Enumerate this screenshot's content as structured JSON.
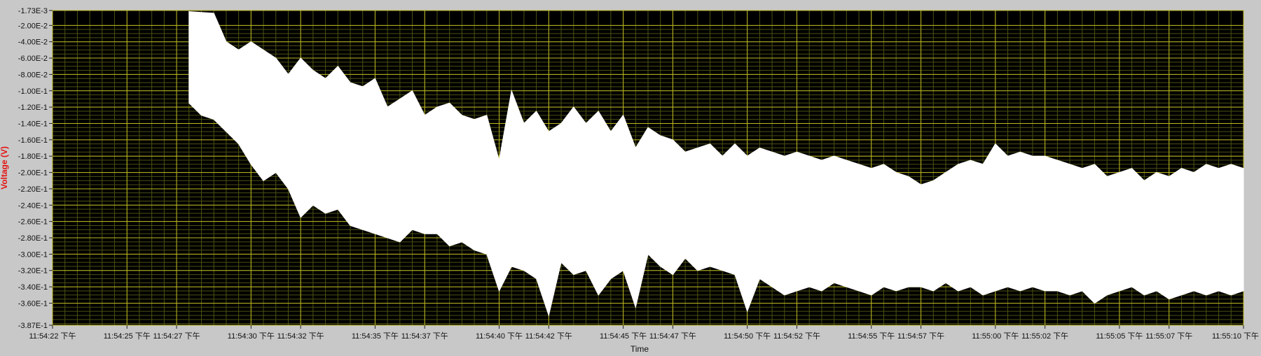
{
  "colors": {
    "frame": "#c8c8c8",
    "plot_bg": "#000000",
    "grid_major": "#bcb820",
    "grid_minor": "#4d5212",
    "signal": "#ffffff",
    "ylabel": "#e31212",
    "tick_text": "#111111"
  },
  "chart_data": {
    "type": "line",
    "title": "",
    "xlabel": "Time",
    "ylabel": "Voltage (V)",
    "grid": true,
    "legend": "none",
    "y_ticks": [
      {
        "value": -0.00173,
        "label": "-1.73E-3"
      },
      {
        "value": -0.02,
        "label": "-2.00E-2"
      },
      {
        "value": -0.04,
        "label": "-4.00E-2"
      },
      {
        "value": -0.06,
        "label": "-6.00E-2"
      },
      {
        "value": -0.08,
        "label": "-8.00E-2"
      },
      {
        "value": -0.1,
        "label": "-1.00E-1"
      },
      {
        "value": -0.12,
        "label": "-1.20E-1"
      },
      {
        "value": -0.14,
        "label": "-1.40E-1"
      },
      {
        "value": -0.16,
        "label": "-1.60E-1"
      },
      {
        "value": -0.18,
        "label": "-1.80E-1"
      },
      {
        "value": -0.2,
        "label": "-2.00E-1"
      },
      {
        "value": -0.22,
        "label": "-2.20E-1"
      },
      {
        "value": -0.24,
        "label": "-2.40E-1"
      },
      {
        "value": -0.26,
        "label": "-2.60E-1"
      },
      {
        "value": -0.28,
        "label": "-2.80E-1"
      },
      {
        "value": -0.3,
        "label": "-3.00E-1"
      },
      {
        "value": -0.32,
        "label": "-3.20E-1"
      },
      {
        "value": -0.34,
        "label": "-3.40E-1"
      },
      {
        "value": -0.36,
        "label": "-3.60E-1"
      },
      {
        "value": -0.387,
        "label": "-3.87E-1"
      }
    ],
    "ylim": [
      -0.387,
      -0.00173
    ],
    "x_ticks": [
      {
        "value": "11:54:22",
        "label": "11:54:22 下午"
      },
      {
        "value": "11:54:25",
        "label": "11:54:25 下午"
      },
      {
        "value": "11:54:27",
        "label": "11:54:27 下午"
      },
      {
        "value": "11:54:30",
        "label": "11:54:30 下午"
      },
      {
        "value": "11:54:32",
        "label": "11:54:32 下午"
      },
      {
        "value": "11:54:35",
        "label": "11:54:35 下午"
      },
      {
        "value": "11:54:37",
        "label": "11:54:37 下午"
      },
      {
        "value": "11:54:40",
        "label": "11:54:40 下午"
      },
      {
        "value": "11:54:42",
        "label": "11:54:42 下午"
      },
      {
        "value": "11:54:45",
        "label": "11:54:45 下午"
      },
      {
        "value": "11:54:47",
        "label": "11:54:47 下午"
      },
      {
        "value": "11:54:50",
        "label": "11:54:50 下午"
      },
      {
        "value": "11:54:52",
        "label": "11:54:52 下午"
      },
      {
        "value": "11:54:55",
        "label": "11:54:55 下午"
      },
      {
        "value": "11:54:57",
        "label": "11:54:57 下午"
      },
      {
        "value": "11:55:00",
        "label": "11:55:00 下午"
      },
      {
        "value": "11:55:02",
        "label": "11:55:02 下午"
      },
      {
        "value": "11:55:05",
        "label": "11:55:05 下午"
      },
      {
        "value": "11:55:07",
        "label": "11:55:07 下午"
      },
      {
        "value": "11:55:10",
        "label": "11:55:10 下午"
      }
    ],
    "xlim": [
      "11:54:22",
      "11:55:10"
    ],
    "series": [
      {
        "style": "band",
        "x": [
          "11:54:27.5",
          "11:54:28.0",
          "11:54:28.5",
          "11:54:29.0",
          "11:54:29.5",
          "11:54:30.0",
          "11:54:30.5",
          "11:54:31.0",
          "11:54:31.5",
          "11:54:32.0",
          "11:54:32.5",
          "11:54:33.0",
          "11:54:33.5",
          "11:54:34.0",
          "11:54:34.5",
          "11:54:35.0",
          "11:54:35.5",
          "11:54:36.0",
          "11:54:36.5",
          "11:54:37.0",
          "11:54:37.5",
          "11:54:38.0",
          "11:54:38.5",
          "11:54:39.0",
          "11:54:39.5",
          "11:54:40.0",
          "11:54:40.5",
          "11:54:41.0",
          "11:54:41.5",
          "11:54:42.0",
          "11:54:42.5",
          "11:54:43.0",
          "11:54:43.5",
          "11:54:44.0",
          "11:54:44.5",
          "11:54:45.0",
          "11:54:45.5",
          "11:54:46.0",
          "11:54:46.5",
          "11:54:47.0",
          "11:54:47.5",
          "11:54:48.0",
          "11:54:48.5",
          "11:54:49.0",
          "11:54:49.5",
          "11:54:50.0",
          "11:54:50.5",
          "11:54:51.0",
          "11:54:51.5",
          "11:54:52.0",
          "11:54:52.5",
          "11:54:53.0",
          "11:54:53.5",
          "11:54:54.0",
          "11:54:54.5",
          "11:54:55.0",
          "11:54:55.5",
          "11:54:56.0",
          "11:54:56.5",
          "11:54:57.0",
          "11:54:57.5",
          "11:54:58.0",
          "11:54:58.5",
          "11:54:59.0",
          "11:54:59.5",
          "11:55:00.0",
          "11:55:00.5",
          "11:55:01.0",
          "11:55:01.5",
          "11:55:02.0",
          "11:55:02.5",
          "11:55:03.0",
          "11:55:03.5",
          "11:55:04.0",
          "11:55:04.5",
          "11:55:05.0",
          "11:55:05.5",
          "11:55:06.0",
          "11:55:06.5",
          "11:55:07.0",
          "11:55:07.5",
          "11:55:08.0",
          "11:55:08.5",
          "11:55:09.0",
          "11:55:09.5",
          "11:55:10.0"
        ],
        "upper": [
          -0.003,
          -0.004,
          -0.005,
          -0.04,
          -0.05,
          -0.04,
          -0.05,
          -0.06,
          -0.08,
          -0.06,
          -0.075,
          -0.085,
          -0.07,
          -0.09,
          -0.095,
          -0.085,
          -0.12,
          -0.11,
          -0.1,
          -0.13,
          -0.12,
          -0.115,
          -0.13,
          -0.135,
          -0.13,
          -0.185,
          -0.1,
          -0.14,
          -0.125,
          -0.15,
          -0.14,
          -0.12,
          -0.14,
          -0.125,
          -0.15,
          -0.13,
          -0.17,
          -0.145,
          -0.155,
          -0.16,
          -0.175,
          -0.17,
          -0.165,
          -0.18,
          -0.165,
          -0.18,
          -0.17,
          -0.175,
          -0.18,
          -0.175,
          -0.18,
          -0.185,
          -0.18,
          -0.185,
          -0.19,
          -0.195,
          -0.19,
          -0.2,
          -0.205,
          -0.215,
          -0.21,
          -0.2,
          -0.19,
          -0.185,
          -0.19,
          -0.165,
          -0.18,
          -0.175,
          -0.18,
          -0.18,
          -0.185,
          -0.19,
          -0.195,
          -0.19,
          -0.205,
          -0.2,
          -0.195,
          -0.21,
          -0.2,
          -0.205,
          -0.195,
          -0.2,
          -0.19,
          -0.195,
          -0.19,
          -0.195
        ],
        "lower": [
          -0.115,
          -0.13,
          -0.135,
          -0.15,
          -0.165,
          -0.19,
          -0.21,
          -0.2,
          -0.22,
          -0.255,
          -0.24,
          -0.25,
          -0.245,
          -0.265,
          -0.27,
          -0.275,
          -0.28,
          -0.285,
          -0.27,
          -0.275,
          -0.275,
          -0.29,
          -0.285,
          -0.295,
          -0.3,
          -0.345,
          -0.315,
          -0.32,
          -0.33,
          -0.375,
          -0.31,
          -0.325,
          -0.32,
          -0.35,
          -0.33,
          -0.32,
          -0.365,
          -0.3,
          -0.315,
          -0.325,
          -0.305,
          -0.32,
          -0.315,
          -0.32,
          -0.325,
          -0.37,
          -0.33,
          -0.34,
          -0.35,
          -0.345,
          -0.34,
          -0.345,
          -0.335,
          -0.34,
          -0.345,
          -0.35,
          -0.34,
          -0.345,
          -0.34,
          -0.34,
          -0.345,
          -0.335,
          -0.345,
          -0.34,
          -0.35,
          -0.345,
          -0.34,
          -0.345,
          -0.34,
          -0.345,
          -0.345,
          -0.35,
          -0.345,
          -0.36,
          -0.35,
          -0.345,
          -0.34,
          -0.35,
          -0.345,
          -0.355,
          -0.35,
          -0.345,
          -0.35,
          -0.345,
          -0.35,
          -0.345
        ]
      }
    ]
  }
}
